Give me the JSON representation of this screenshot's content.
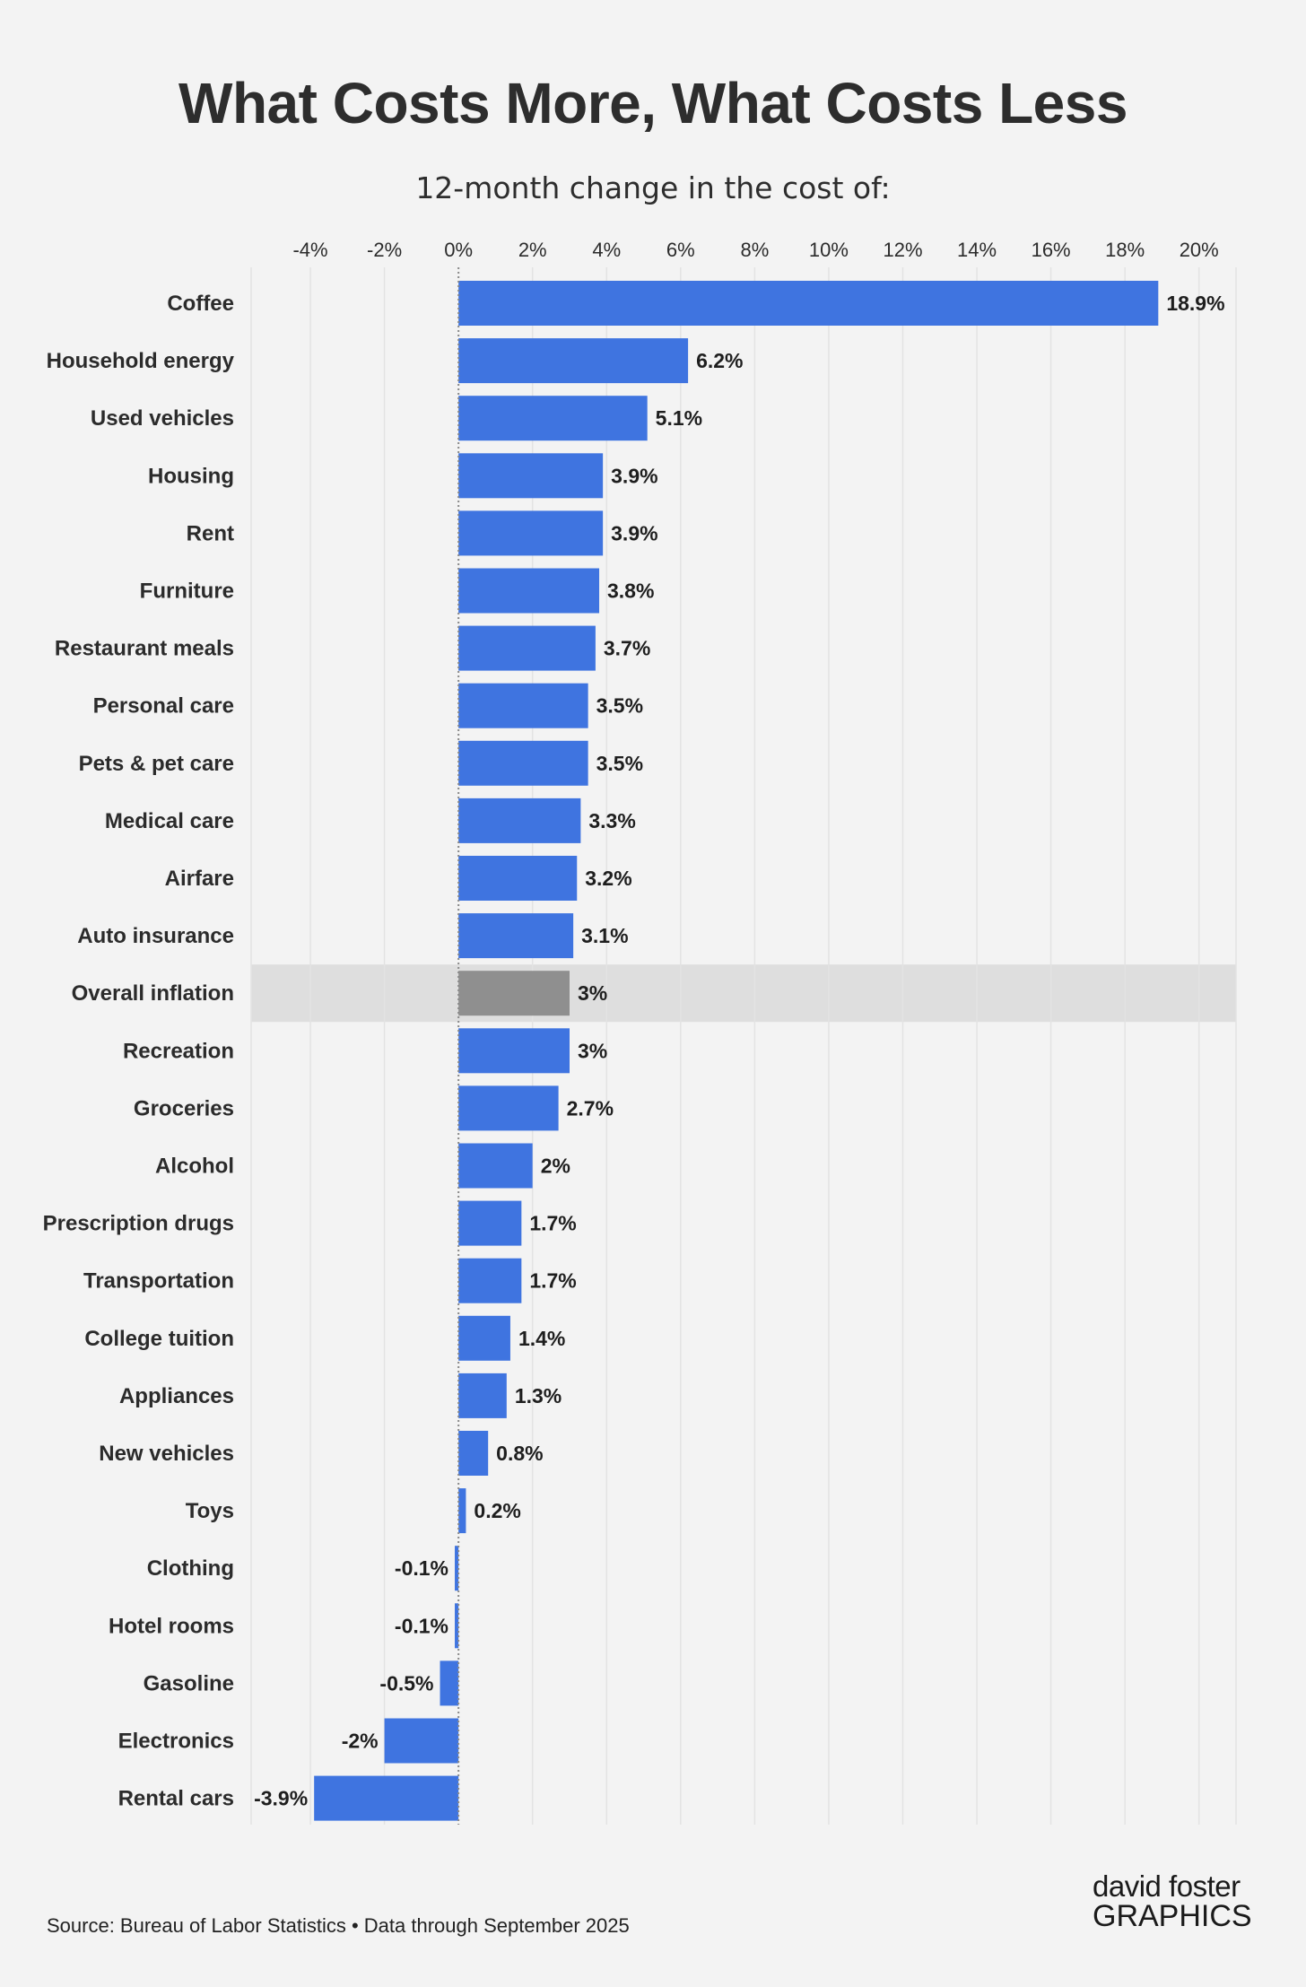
{
  "title": "What Costs More, What Costs Less",
  "subtitle": "12-month change in the cost of:",
  "source": "Source: Bureau of Labor Statistics • Data through September 2025",
  "logo": {
    "line1": "david foster",
    "line2": "GRAPHICS"
  },
  "colors": {
    "bar": "#3f74e0",
    "highlight_bar": "#8f8f8f",
    "highlight_band": "#dedede",
    "background": "#f3f3f3",
    "grid": "#e3e3e3"
  },
  "chart_data": {
    "type": "bar",
    "orientation": "horizontal",
    "xlim": [
      -5.6,
      21.0
    ],
    "xticks": [
      -4,
      -2,
      0,
      2,
      4,
      6,
      8,
      10,
      12,
      14,
      16,
      18,
      20
    ],
    "tick_labels": [
      "-4%",
      "-2%",
      "0%",
      "2%",
      "4%",
      "6%",
      "8%",
      "10%",
      "12%",
      "14%",
      "16%",
      "18%",
      "20%"
    ],
    "axis_position": "top",
    "grid": true,
    "highlight": "Overall inflation",
    "categories": [
      "Coffee",
      "Household energy",
      "Used vehicles",
      "Housing",
      "Rent",
      "Furniture",
      "Restaurant meals",
      "Personal care",
      "Pets & pet care",
      "Medical care",
      "Airfare",
      "Auto insurance",
      "Overall inflation",
      "Recreation",
      "Groceries",
      "Alcohol",
      "Prescription drugs",
      "Transportation",
      "College tuition",
      "Appliances",
      "New vehicles",
      "Toys",
      "Clothing",
      "Hotel rooms",
      "Gasoline",
      "Electronics",
      "Rental cars"
    ],
    "values": [
      18.9,
      6.2,
      5.1,
      3.9,
      3.9,
      3.8,
      3.7,
      3.5,
      3.5,
      3.3,
      3.2,
      3.1,
      3,
      3,
      2.7,
      2,
      1.7,
      1.7,
      1.4,
      1.3,
      0.8,
      0.2,
      -0.1,
      -0.1,
      -0.5,
      -2,
      -3.9
    ],
    "value_labels": [
      "18.9%",
      "6.2%",
      "5.1%",
      "3.9%",
      "3.9%",
      "3.8%",
      "3.7%",
      "3.5%",
      "3.5%",
      "3.3%",
      "3.2%",
      "3.1%",
      "3%",
      "3%",
      "2.7%",
      "2%",
      "1.7%",
      "1.7%",
      "1.4%",
      "1.3%",
      "0.8%",
      "0.2%",
      "-0.1%",
      "-0.1%",
      "-0.5%",
      "-2%",
      "-3.9%"
    ]
  }
}
